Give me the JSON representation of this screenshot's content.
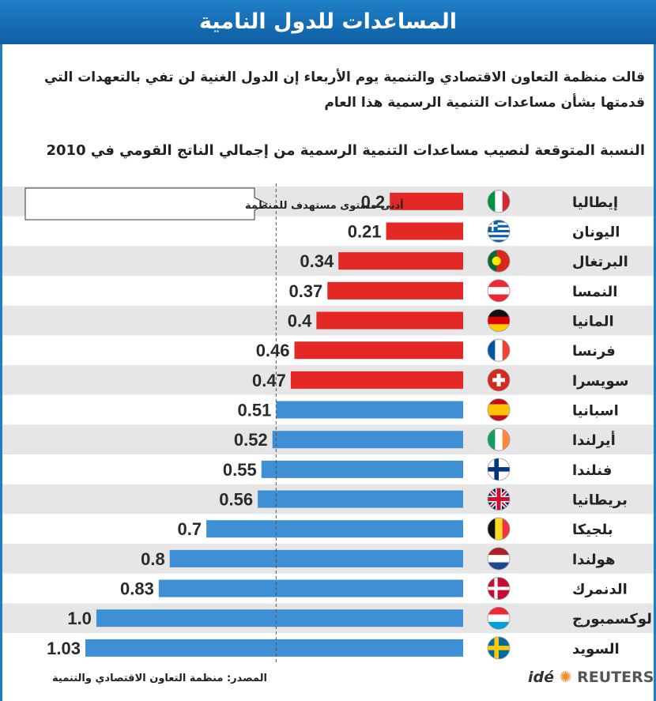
{
  "header": {
    "title": "المساعدات للدول النامية"
  },
  "subtitle": "قالت منظمة التعاون الاقتصادي والتنمية يوم الأربعاء إن الدول الغنية لن تفي بالتعهدات التي قدمتها بشأن مساعدات التنمية الرسمية هذا العام",
  "chart_data": {
    "type": "bar",
    "orientation": "horizontal",
    "title": "النسبة المتوقعة لنصيب مساعدات التنمية الرسمية من إجمالي الناتج القومي في 2010",
    "categories": [
      "إيطاليا",
      "اليونان",
      "البرتغال",
      "النمسا",
      "المانيا",
      "فرنسا",
      "سويسرا",
      "اسبانيا",
      "أيرلندا",
      "فنلندا",
      "بريطانيا",
      "بلجيكا",
      "هولندا",
      "الدنمرك",
      "لوكسمبورج",
      "السويد"
    ],
    "values": [
      0.2,
      0.21,
      0.34,
      0.37,
      0.4,
      0.46,
      0.47,
      0.51,
      0.52,
      0.55,
      0.56,
      0.7,
      0.8,
      0.83,
      1.0,
      1.03
    ],
    "value_labels": [
      "0.2",
      "0.21",
      "0.34",
      "0.37",
      "0.4",
      "0.46",
      "0.47",
      "0.51",
      "0.52",
      "0.55",
      "0.56",
      "0.7",
      "0.8",
      "0.83",
      "1.0",
      "1.03"
    ],
    "threshold": {
      "value": 0.51,
      "label": "أدنى مستوى مستهدف للمنظمة"
    },
    "colors": {
      "below_target": "#e32826",
      "at_or_above_target": "#3e8fd4",
      "row_shade": "#e6e6e6"
    },
    "flags": [
      "italy-flag",
      "greece-flag",
      "portugal-flag",
      "austria-flag",
      "germany-flag",
      "france-flag",
      "switzerland-flag",
      "spain-flag",
      "ireland-flag",
      "finland-flag",
      "uk-flag",
      "belgium-flag",
      "netherlands-flag",
      "denmark-flag",
      "luxembourg-flag",
      "sweden-flag"
    ]
  },
  "footer": {
    "source": "المصدر: منظمة التعاون الاقتصادي والتنمية",
    "logo_ide": "idé",
    "logo_reuters": "REUTERS"
  }
}
